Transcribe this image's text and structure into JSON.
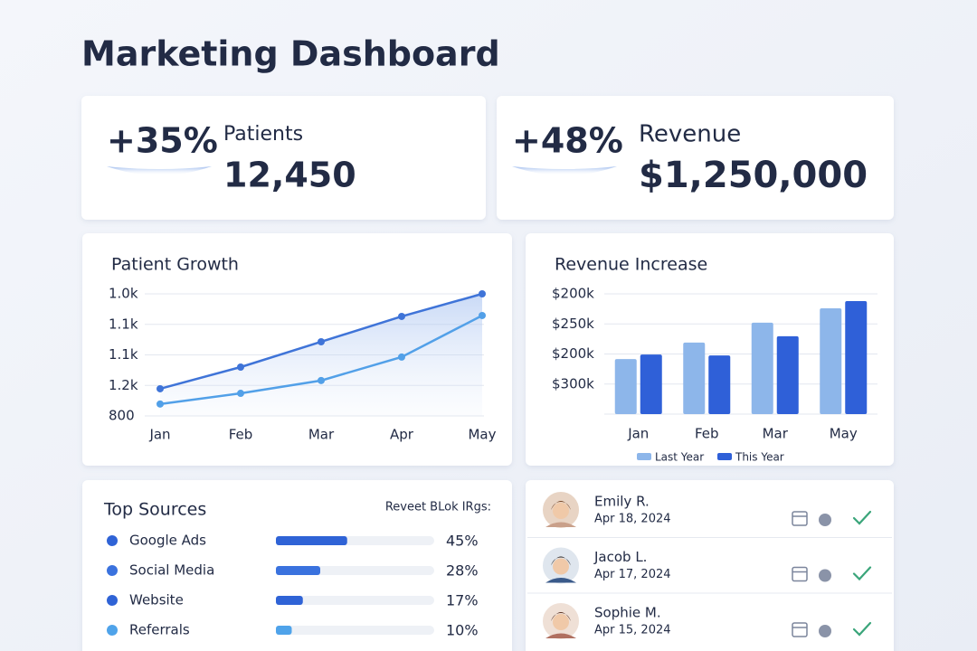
{
  "title": "Marketing Dashboard",
  "kpis": [
    {
      "change": "+35%",
      "label": "Patients",
      "value": "12,450"
    },
    {
      "change": "+48%",
      "label": "Revenue",
      "value": "$1,250,000"
    }
  ],
  "chart_data": [
    {
      "type": "line",
      "title": "Patient Growth",
      "categories": [
        "Jan",
        "Feb",
        "Mar",
        "Apr",
        "May"
      ],
      "ylim": [
        800,
        1200
      ],
      "y_axis_labels": [
        "800",
        "1.2k",
        "1.1k",
        "1.1k",
        "1.0k"
      ],
      "grid": true,
      "series": [
        {
          "color": "#3f74d8",
          "values": [
            889,
            960,
            1043,
            1126,
            1200
          ]
        },
        {
          "color": "#52a0e8",
          "values": [
            839,
            874,
            916,
            993,
            1129
          ]
        }
      ]
    },
    {
      "type": "bar",
      "title": "Revenue Increase",
      "categories": [
        "Jan",
        "Feb",
        "Mar",
        "May"
      ],
      "ylim": [
        0,
        400000
      ],
      "y_axis_labels": [
        null,
        "$300k",
        "$200k",
        "$250k",
        "$200k"
      ],
      "grid": true,
      "legend": "bottom",
      "series": [
        {
          "name": "Last Year",
          "color": "#8db6ea",
          "values": [
            183000,
            238000,
            304000,
            352000
          ]
        },
        {
          "name": "This Year",
          "color": "#2f60d8",
          "values": [
            198000,
            195000,
            259000,
            376000
          ]
        }
      ]
    }
  ],
  "sources": {
    "title": "Top Sources",
    "note": "Reveet BLok IRgs:",
    "items": [
      {
        "name": "Google Ads",
        "color": "#2f63d6",
        "value": 45,
        "value_label": "45%"
      },
      {
        "name": "Social Media",
        "color": "#3a72de",
        "value": 28,
        "value_label": "28%"
      },
      {
        "name": "Website",
        "color": "#2f63d6",
        "value": 17,
        "value_label": "17%"
      },
      {
        "name": "Referrals",
        "color": "#4fa3ea",
        "value": 10,
        "value_label": "10%"
      }
    ]
  },
  "people": [
    {
      "name": "Emily R.",
      "date": "Apr 18, 2024"
    },
    {
      "name": "Jacob L.",
      "date": "Apr 17, 2024"
    },
    {
      "name": "Sophie M.",
      "date": "Apr 15, 2024"
    }
  ]
}
